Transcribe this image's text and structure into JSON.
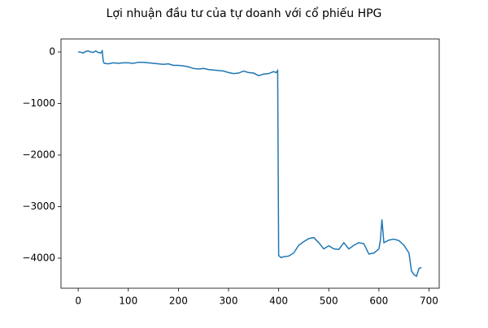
{
  "chart_data": {
    "type": "line",
    "title": "Lợi nhuận đầu tư của tự doanh với cổ phiếu HPG",
    "x": [
      0,
      5,
      10,
      15,
      20,
      25,
      30,
      35,
      40,
      45,
      48,
      50,
      52,
      60,
      70,
      80,
      90,
      100,
      110,
      120,
      130,
      140,
      150,
      160,
      170,
      180,
      190,
      200,
      210,
      220,
      230,
      240,
      250,
      260,
      270,
      280,
      290,
      300,
      310,
      320,
      330,
      340,
      350,
      360,
      370,
      380,
      390,
      395,
      398,
      400,
      405,
      410,
      420,
      430,
      440,
      450,
      460,
      470,
      480,
      490,
      500,
      510,
      520,
      530,
      540,
      550,
      560,
      570,
      580,
      590,
      600,
      603,
      606,
      610,
      620,
      630,
      640,
      650,
      660,
      665,
      670,
      675,
      680,
      685
    ],
    "series": [
      {
        "color": "#1f77b4",
        "values": [
          0,
          -5,
          -20,
          10,
          20,
          0,
          -10,
          20,
          -10,
          -20,
          20,
          -180,
          -220,
          -230,
          -210,
          -220,
          -210,
          -210,
          -220,
          -200,
          -200,
          -210,
          -220,
          -230,
          -240,
          -230,
          -260,
          -260,
          -270,
          -290,
          -320,
          -330,
          -320,
          -340,
          -350,
          -360,
          -370,
          -400,
          -420,
          -410,
          -370,
          -400,
          -410,
          -460,
          -430,
          -420,
          -380,
          -400,
          -360,
          -3950,
          -3990,
          -3970,
          -3960,
          -3900,
          -3750,
          -3680,
          -3620,
          -3600,
          -3700,
          -3820,
          -3760,
          -3820,
          -3830,
          -3700,
          -3820,
          -3750,
          -3700,
          -3720,
          -3920,
          -3900,
          -3820,
          -3650,
          -3250,
          -3700,
          -3650,
          -3630,
          -3660,
          -3750,
          -3900,
          -4250,
          -4320,
          -4350,
          -4200,
          -4180
        ]
      }
    ],
    "xlim": [
      -34.3,
      720.3
    ],
    "ylim": [
      -4583,
      252
    ],
    "xticks": [
      0,
      100,
      200,
      300,
      400,
      500,
      600,
      700
    ],
    "yticks": [
      0,
      {
        "value": -1000,
        "label": "−1000"
      },
      {
        "value": -2000,
        "label": "−2000"
      },
      {
        "value": -3000,
        "label": "−3000"
      },
      {
        "value": -4000,
        "label": "−4000"
      }
    ]
  }
}
